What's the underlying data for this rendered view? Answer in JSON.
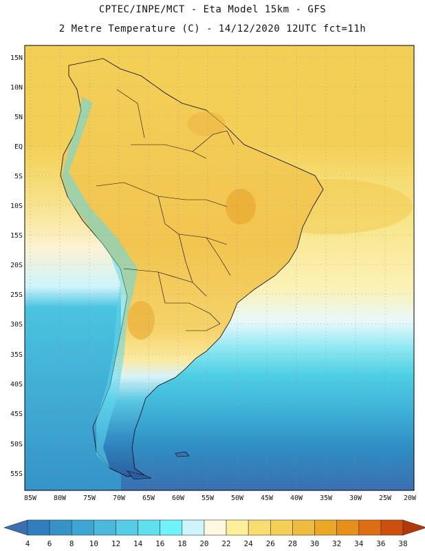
{
  "title_line1": "CPTEC/INPE/MCT -  Eta Model 15km - GFS",
  "title_line2": "2 Metre Temperature (C) - 14/12/2020 12UTC fct=11h",
  "lat_labels": [
    "15N",
    "10N",
    "5N",
    "EQ",
    "5S",
    "10S",
    "15S",
    "20S",
    "25S",
    "30S",
    "35S",
    "40S",
    "45S",
    "50S",
    "55S"
  ],
  "lon_labels": [
    "85W",
    "80W",
    "75W",
    "70W",
    "65W",
    "60W",
    "55W",
    "50W",
    "45W",
    "40W",
    "35W",
    "30W",
    "25W",
    "20W"
  ],
  "colorbar": {
    "levels": [
      4,
      6,
      8,
      10,
      12,
      14,
      16,
      18,
      20,
      22,
      24,
      26,
      28,
      30,
      32,
      34,
      36,
      38
    ],
    "colors": [
      "#3a6fb0",
      "#2f7fbe",
      "#3593c8",
      "#3ea6d2",
      "#4bb9dc",
      "#56cde6",
      "#5fe0ee",
      "#6ff2f8",
      "#cdf6fc",
      "#fdf8e0",
      "#fdf09a",
      "#f8de72",
      "#f3cf58",
      "#eebd40",
      "#eaa824",
      "#e6901a",
      "#dd6f12",
      "#cc4f0c",
      "#b0380a"
    ]
  }
}
